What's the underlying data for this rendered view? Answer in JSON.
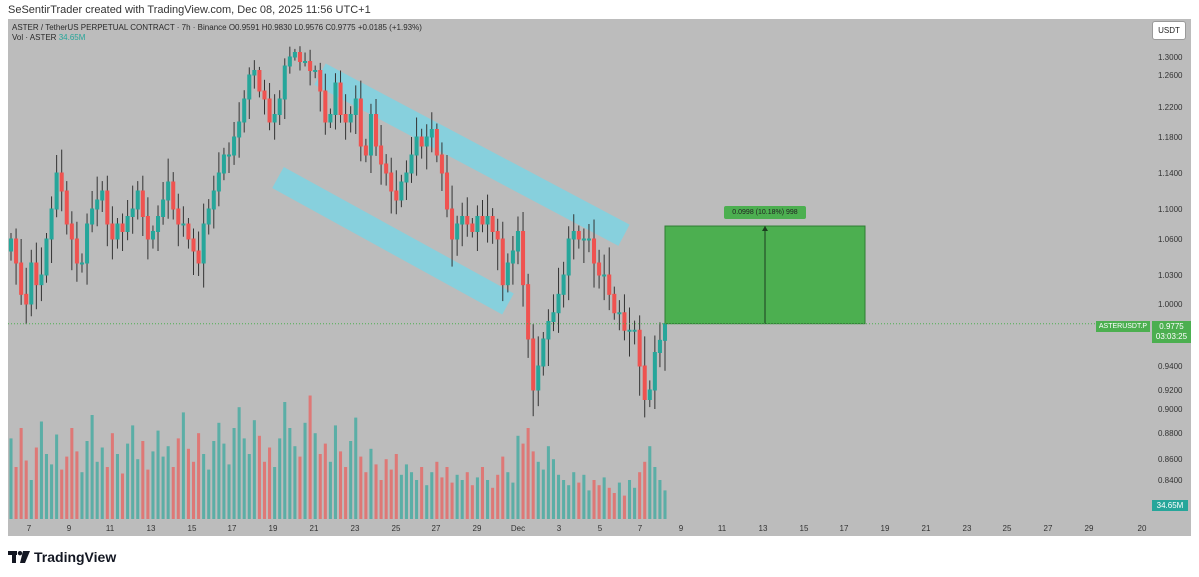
{
  "header": {
    "credit": "SeSentirTrader created with TradingView.com, Dec 08, 2025 11:56 UTC+1"
  },
  "legend": {
    "symbol_line": "ASTER / TetherUS PERPETUAL CONTRACT · 7h · Binance",
    "ohlc": "O0.9591 H0.9830 L0.9576 C0.9775 +0.0185 (+1.93%)",
    "vol_label": "Vol · ASTER",
    "vol_value": "34.65M"
  },
  "price_axis": {
    "unit": "USDT",
    "ticks": [
      "1.3000",
      "1.2600",
      "1.2200",
      "1.1800",
      "1.1400",
      "1.1000",
      "1.0600",
      "1.0300",
      "1.0000",
      "0.9600",
      "0.9400",
      "0.9200",
      "0.9000",
      "0.8800",
      "0.8600",
      "0.8400",
      "0.8220"
    ],
    "current_price": "0.9775",
    "countdown": "03:03:25",
    "symbol_tag": "ASTERUSDT.P",
    "volume_tag": "34.65M"
  },
  "time_axis": {
    "ticks": [
      "7",
      "9",
      "11",
      "13",
      "15",
      "17",
      "19",
      "21",
      "23",
      "25",
      "27",
      "29",
      "Dec",
      "3",
      "5",
      "7",
      "9",
      "11",
      "13",
      "15",
      "17",
      "19",
      "21",
      "23",
      "25",
      "27",
      "29",
      "20"
    ]
  },
  "measure": {
    "label": "0.0998 (10.18%) 998"
  },
  "colors": {
    "background": "#bcbcbc",
    "up": "#26a69a",
    "down": "#ef5350",
    "channel": "#7ed3e3",
    "measure_fill": "#4caf50"
  },
  "footer": {
    "brand": "TradingView"
  },
  "chart_data": {
    "type": "candlestick",
    "symbol": "ASTER / TetherUS PERPETUAL CONTRACT",
    "interval": "7h",
    "exchange": "Binance",
    "ohlc_last": {
      "open": 0.9591,
      "high": 0.983,
      "low": 0.9576,
      "close": 0.9775,
      "change": 0.0185,
      "change_pct": 1.93
    },
    "closes": [
      1.06,
      1.04,
      1.01,
      1.0,
      1.04,
      1.02,
      1.03,
      1.06,
      1.1,
      1.14,
      1.12,
      1.08,
      1.06,
      1.04,
      1.04,
      1.08,
      1.1,
      1.11,
      1.12,
      1.08,
      1.06,
      1.08,
      1.07,
      1.09,
      1.1,
      1.12,
      1.09,
      1.06,
      1.07,
      1.09,
      1.11,
      1.13,
      1.1,
      1.08,
      1.08,
      1.06,
      1.05,
      1.04,
      1.08,
      1.1,
      1.12,
      1.14,
      1.16,
      1.16,
      1.18,
      1.2,
      1.23,
      1.26,
      1.27,
      1.24,
      1.23,
      1.2,
      1.21,
      1.23,
      1.28,
      1.3,
      1.31,
      1.29,
      1.29,
      1.27,
      1.27,
      1.24,
      1.2,
      1.21,
      1.25,
      1.21,
      1.2,
      1.21,
      1.23,
      1.17,
      1.16,
      1.21,
      1.17,
      1.15,
      1.14,
      1.12,
      1.11,
      1.13,
      1.14,
      1.16,
      1.18,
      1.17,
      1.18,
      1.19,
      1.16,
      1.14,
      1.1,
      1.06,
      1.08,
      1.09,
      1.08,
      1.07,
      1.09,
      1.08,
      1.09,
      1.07,
      1.06,
      1.02,
      1.04,
      1.05,
      1.07,
      1.02,
      0.96,
      0.92,
      0.94,
      0.96,
      0.98,
      0.99,
      1.01,
      1.03,
      1.06,
      1.07,
      1.06,
      1.06,
      1.06,
      1.04,
      1.03,
      1.03,
      1.01,
      0.99,
      0.99,
      0.97,
      0.97,
      0.97,
      0.94,
      0.91,
      0.92,
      0.95,
      0.959,
      0.9775
    ],
    "volumes": [
      0.62,
      0.4,
      0.7,
      0.45,
      0.3,
      0.55,
      0.75,
      0.5,
      0.42,
      0.65,
      0.38,
      0.48,
      0.7,
      0.52,
      0.36,
      0.6,
      0.8,
      0.44,
      0.55,
      0.4,
      0.66,
      0.5,
      0.35,
      0.58,
      0.72,
      0.46,
      0.6,
      0.38,
      0.52,
      0.68,
      0.48,
      0.56,
      0.4,
      0.62,
      0.82,
      0.54,
      0.44,
      0.66,
      0.5,
      0.38,
      0.6,
      0.74,
      0.58,
      0.42,
      0.7,
      0.86,
      0.62,
      0.5,
      0.76,
      0.64,
      0.44,
      0.55,
      0.4,
      0.62,
      0.9,
      0.7,
      0.56,
      0.48,
      0.74,
      0.95,
      0.66,
      0.5,
      0.58,
      0.44,
      0.72,
      0.52,
      0.4,
      0.6,
      0.78,
      0.48,
      0.36,
      0.54,
      0.42,
      0.3,
      0.46,
      0.38,
      0.5,
      0.34,
      0.42,
      0.36,
      0.3,
      0.4,
      0.26,
      0.36,
      0.44,
      0.32,
      0.4,
      0.28,
      0.34,
      0.3,
      0.36,
      0.26,
      0.32,
      0.4,
      0.3,
      0.24,
      0.34,
      0.48,
      0.36,
      0.28,
      0.64,
      0.58,
      0.7,
      0.52,
      0.44,
      0.38,
      0.56,
      0.46,
      0.34,
      0.3,
      0.26,
      0.36,
      0.28,
      0.34,
      0.22,
      0.3,
      0.26,
      0.32,
      0.24,
      0.2,
      0.28,
      0.18,
      0.3,
      0.24,
      0.36,
      0.44,
      0.56,
      0.4,
      0.3,
      0.22
    ],
    "x_ticks": [
      "7",
      "9",
      "11",
      "13",
      "15",
      "17",
      "19",
      "21",
      "23",
      "25",
      "27",
      "29",
      "Dec",
      "3",
      "5",
      "7",
      "9",
      "11",
      "13",
      "15",
      "17",
      "19",
      "21",
      "23",
      "25",
      "27",
      "29",
      "20"
    ],
    "y_ticks": [
      1.3,
      1.26,
      1.22,
      1.18,
      1.14,
      1.1,
      1.06,
      1.03,
      1.0,
      0.96,
      0.94,
      0.92,
      0.9,
      0.88,
      0.86,
      0.84,
      0.822
    ],
    "ylim": [
      0.815,
      1.31
    ],
    "annotations": {
      "channel_upper": [
        [
          1.262,
          1.065
        ],
        [
          1.025,
          1.0
        ]
      ],
      "channel_lower": [
        [
          1.135,
          1.0
        ],
        [
          1.1,
          0.985
        ]
      ],
      "measure": {
        "from": 0.9775,
        "to": 1.0773,
        "label": "0.0998 (10.18%) 998"
      }
    }
  }
}
